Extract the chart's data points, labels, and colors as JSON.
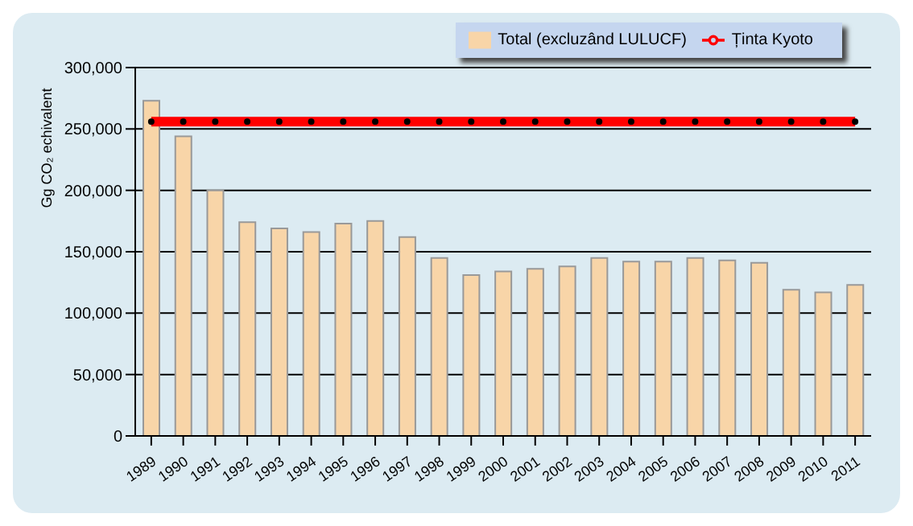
{
  "chart_data": {
    "type": "bar",
    "ylabel": "Gg CO₂ echivalent",
    "categories": [
      "1989",
      "1990",
      "1991",
      "1992",
      "1993",
      "1994",
      "1995",
      "1996",
      "1997",
      "1998",
      "1999",
      "2000",
      "2001",
      "2002",
      "2003",
      "2004",
      "2005",
      "2006",
      "2007",
      "2008",
      "2009",
      "2010",
      "2011"
    ],
    "series": [
      {
        "name": "Total (excluzând LULUCF)",
        "color": "#f8d5a8",
        "values": [
          273000,
          244000,
          200000,
          174000,
          169000,
          166000,
          173000,
          175000,
          162000,
          145000,
          131000,
          134000,
          136000,
          138000,
          145000,
          142000,
          142000,
          145000,
          143000,
          141000,
          119000,
          117000,
          123000
        ]
      },
      {
        "name": "Ținta Kyoto",
        "type": "line",
        "color": "#ff0000",
        "marker": "circle",
        "values": [
          256000,
          256000,
          256000,
          256000,
          256000,
          256000,
          256000,
          256000,
          256000,
          256000,
          256000,
          256000,
          256000,
          256000,
          256000,
          256000,
          256000,
          256000,
          256000,
          256000,
          256000,
          256000,
          256000
        ]
      }
    ],
    "ylim": [
      0,
      300000
    ],
    "yticks": [
      0,
      {
        "value": 50000,
        "label": "50,000"
      },
      {
        "value": 100000,
        "label": "100,000"
      },
      {
        "value": 150000,
        "label": "150,000"
      },
      {
        "value": 200000,
        "label": "200,000"
      },
      {
        "value": 250000,
        "label": "250,000"
      },
      {
        "value": 300000,
        "label": "300,000"
      }
    ],
    "grid": "y",
    "legend": "top right"
  }
}
